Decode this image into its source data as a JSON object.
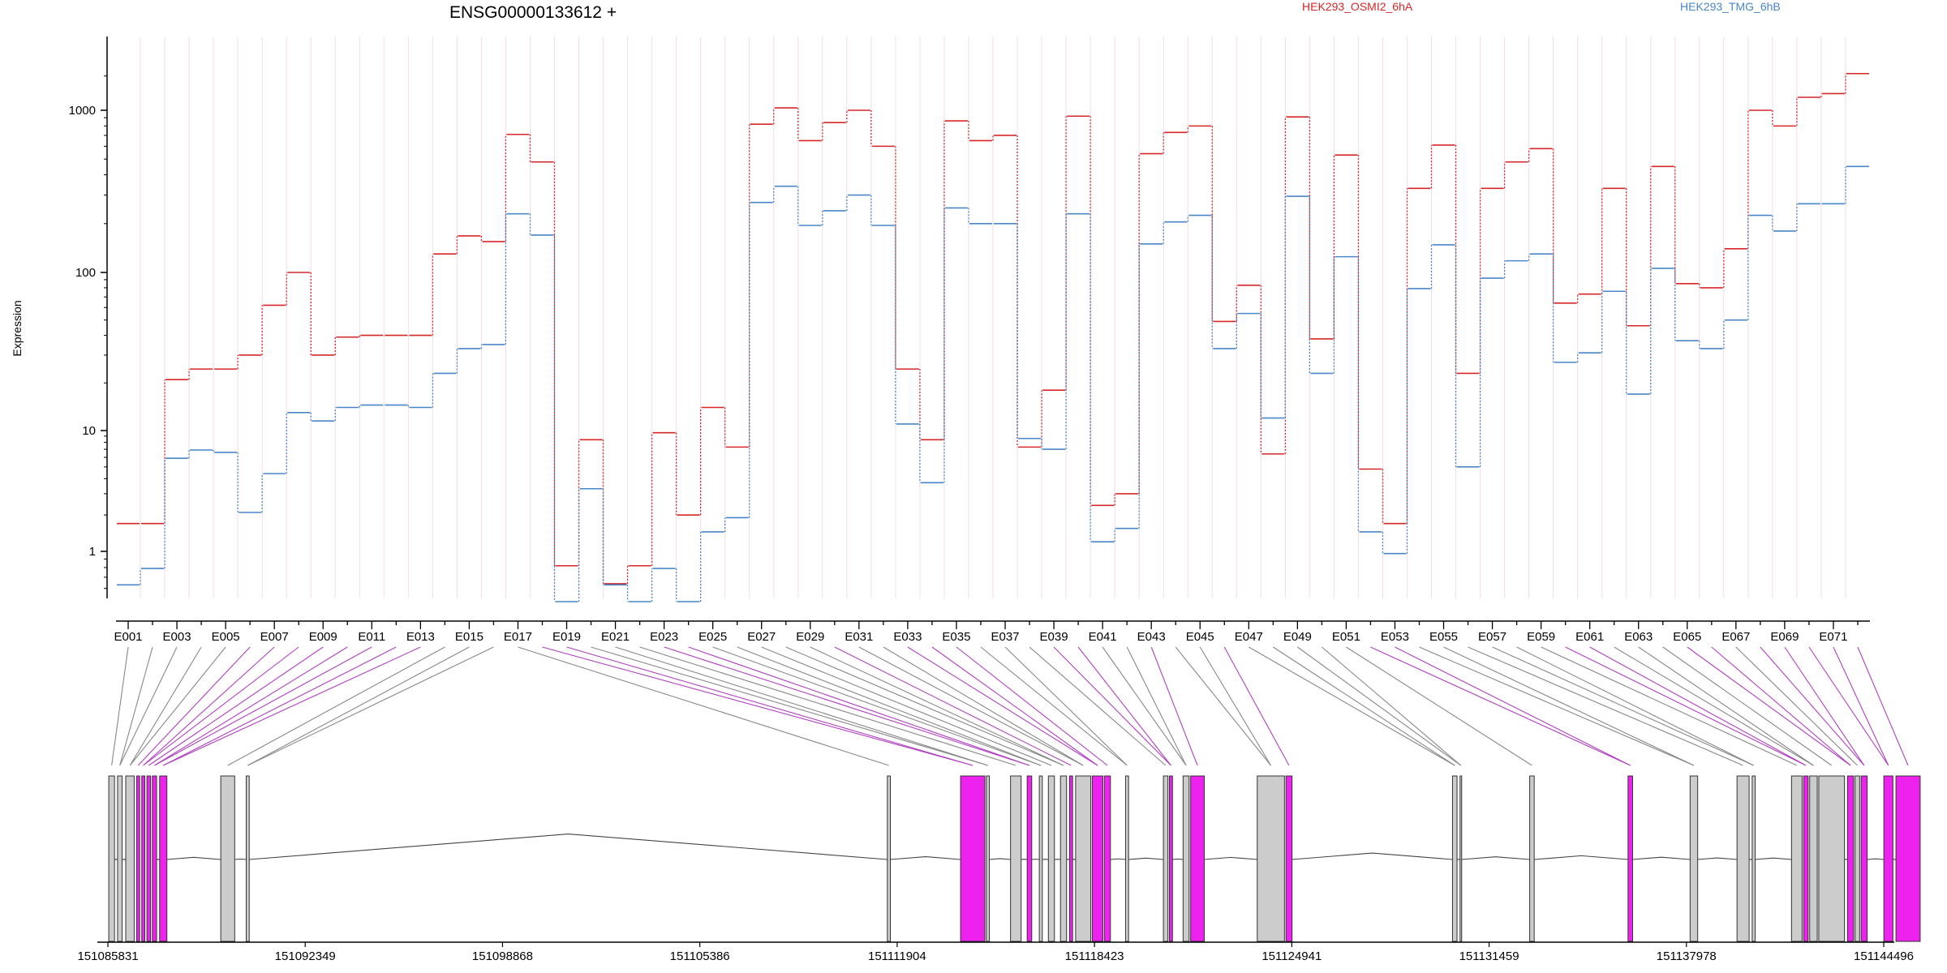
{
  "chart_data": {
    "type": "line",
    "title": "ENSG00000133612 +",
    "ylabel": "Expression",
    "xlabel": "",
    "y_scale": "log",
    "ylim": [
      0.6,
      3000
    ],
    "y_ticks": [
      1,
      10,
      100,
      1000
    ],
    "y_tick_labels": [
      "1",
      "10",
      "100",
      "1000"
    ],
    "grid": "vertical lines at exon boundaries",
    "legend_position": "top",
    "exon_labels_shown": [
      "E001",
      "E003",
      "E005",
      "E007",
      "E009",
      "E011",
      "E013",
      "E015",
      "E017",
      "E019",
      "E021",
      "E023",
      "E025",
      "E027",
      "E029",
      "E031",
      "E033",
      "E035",
      "E037",
      "E039",
      "E041",
      "E043",
      "E045",
      "E047",
      "E049",
      "E051",
      "E053",
      "E055",
      "E057",
      "E059",
      "E061",
      "E063",
      "E065",
      "E067",
      "E069",
      "E071"
    ],
    "exons": [
      "E001",
      "E002",
      "E003",
      "E004",
      "E005",
      "E006",
      "E007",
      "E008",
      "E009",
      "E010",
      "E011",
      "E012",
      "E013",
      "E014",
      "E015",
      "E016",
      "E017",
      "E018",
      "E019",
      "E020",
      "E021",
      "E022",
      "E023",
      "E024",
      "E025",
      "E026",
      "E027",
      "E028",
      "E029",
      "E030",
      "E031",
      "E032",
      "E033",
      "E034",
      "E035",
      "E036",
      "E037",
      "E038",
      "E039",
      "E040",
      "E041",
      "E042",
      "E043",
      "E044",
      "E045",
      "E046",
      "E047",
      "E048",
      "E049",
      "E050",
      "E051",
      "E052",
      "E053",
      "E054",
      "E055",
      "E056",
      "E057",
      "E058",
      "E059",
      "E060",
      "E061",
      "E062",
      "E063",
      "E064",
      "E065",
      "E066",
      "E067",
      "E068",
      "E069",
      "E070",
      "E071",
      "E072"
    ],
    "series": [
      {
        "name": "HEK293_OSMI2_6hA",
        "color": "#d62728",
        "values": [
          1.7,
          1.7,
          21,
          24.5,
          24.5,
          30,
          62,
          100,
          30,
          39,
          40,
          40,
          40,
          130,
          168,
          155,
          710,
          480,
          0.82,
          8.4,
          0.64,
          0.82,
          9.6,
          2.0,
          14,
          7.3,
          820,
          1050,
          650,
          840,
          1000,
          600,
          24.5,
          8.4,
          860,
          650,
          700,
          7.3,
          18,
          920,
          2.4,
          3.0,
          540,
          730,
          800,
          49,
          83,
          6.4,
          910,
          38,
          530,
          4.8,
          1.7,
          330,
          610,
          23,
          330,
          480,
          580,
          64,
          73,
          330,
          46,
          450,
          85,
          80,
          140,
          1000,
          800,
          1300,
          1400,
          2100
        ]
      },
      {
        "name": "HEK293_TMG_6hB",
        "color": "#4a86c8",
        "values": [
          0.63,
          0.79,
          5.9,
          6.9,
          6.6,
          2.1,
          4.4,
          13,
          11.5,
          14,
          14.5,
          14.5,
          14,
          23,
          33,
          35,
          230,
          170,
          0.5,
          3.3,
          0.63,
          0.5,
          0.79,
          0.5,
          1.45,
          1.9,
          270,
          340,
          195,
          240,
          300,
          195,
          11,
          3.7,
          250,
          200,
          200,
          8.6,
          7.0,
          230,
          1.2,
          1.55,
          150,
          205,
          225,
          33,
          55,
          12,
          295,
          23,
          125,
          1.45,
          0.97,
          79,
          148,
          5.0,
          92,
          118,
          130,
          27,
          31,
          76,
          17,
          106,
          37,
          33,
          50,
          225,
          180,
          265,
          265,
          450
        ]
      }
    ],
    "gene_model": {
      "axis_tick_labels": [
        "151085831",
        "151092349",
        "151098868",
        "151105386",
        "151111904",
        "151118423",
        "151124941",
        "151131459",
        "151137978",
        "151144496"
      ],
      "xlim": [
        151085831,
        151144496
      ]
    }
  },
  "colors": {
    "series_a": "#d62728",
    "series_b": "#4a86c8",
    "exon_fill": "#cccccc",
    "exon_tested": "#ee22ee",
    "exon_line_grey": "#888888",
    "exon_line_magenta": "#b040c0",
    "grid": "#f3dce8"
  }
}
